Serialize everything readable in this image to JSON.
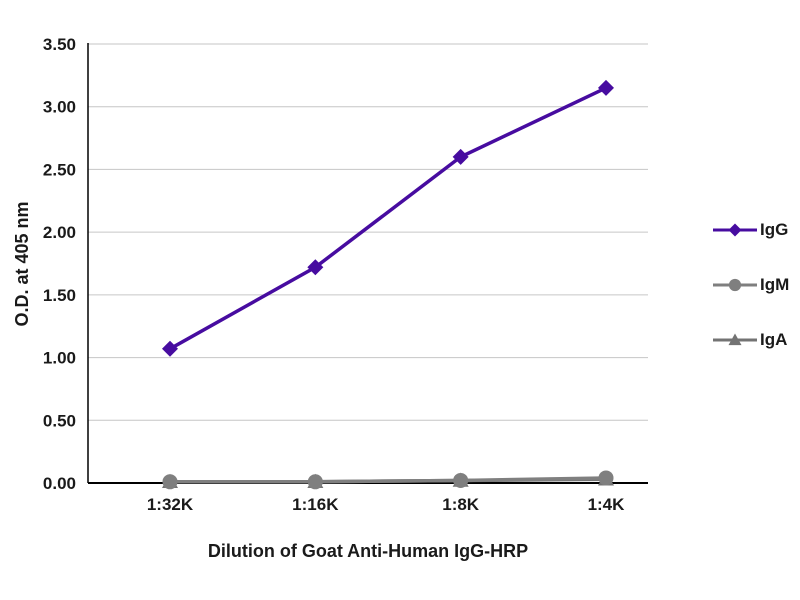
{
  "chart_data": {
    "type": "line",
    "title": "",
    "xlabel": "Dilution of Goat Anti-Human IgG-HRP",
    "ylabel": "O.D. at 405 nm",
    "categories": [
      "1:32K",
      "1:16K",
      "1:8K",
      "1:4K"
    ],
    "y_ticks": [
      "0.00",
      "0.50",
      "1.00",
      "1.50",
      "2.00",
      "2.50",
      "3.00",
      "3.50"
    ],
    "ylim": [
      0,
      3.5
    ],
    "grid": "horizontal",
    "legend_position": "right",
    "colors": {
      "grid": "#c6c6c6",
      "axis": "#000000",
      "text": "#1a1a1a"
    },
    "series": [
      {
        "name": "IgG",
        "color": "#470ca0",
        "marker": "diamond",
        "values": [
          1.07,
          1.72,
          2.6,
          3.15
        ]
      },
      {
        "name": "IgM",
        "color": "#7f7f7f",
        "marker": "circle",
        "values": [
          0.01,
          0.01,
          0.02,
          0.04
        ]
      },
      {
        "name": "IgA",
        "color": "#737373",
        "marker": "triangle",
        "values": [
          0.01,
          0.01,
          0.02,
          0.03
        ]
      }
    ]
  }
}
